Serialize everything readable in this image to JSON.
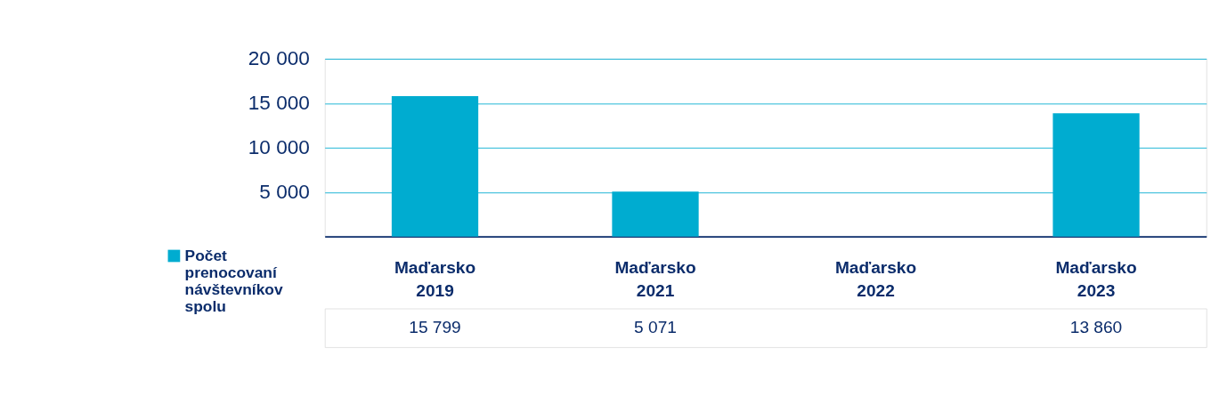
{
  "chart_data": {
    "type": "bar",
    "categories": [
      "Maďarsko 2019",
      "Maďarsko 2021",
      "Maďarsko 2022",
      "Maďarsko 2023"
    ],
    "series": [
      {
        "name": "Počet prenocovaní návštevníkov spolu",
        "color": "#00acd0",
        "values": [
          15799,
          5071,
          null,
          13860
        ]
      }
    ],
    "ylim": [
      0,
      20000
    ],
    "yticks": [
      {
        "value": 5000,
        "label": "5 000"
      },
      {
        "value": 10000,
        "label": "10 000"
      },
      {
        "value": 15000,
        "label": "15 000"
      },
      {
        "value": 20000,
        "label": "20 000"
      }
    ],
    "grid": "y",
    "legend": "bottom left",
    "data_labels": true
  }
}
